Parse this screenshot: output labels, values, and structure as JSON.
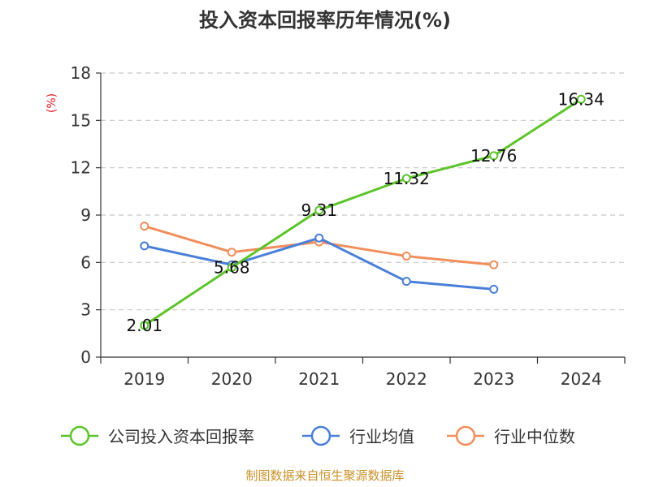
{
  "chart_data": {
    "type": "line",
    "title": "投入资本回报率历年情况(%)",
    "ylabel": "(%)",
    "categories": [
      "2019",
      "2020",
      "2021",
      "2022",
      "2023",
      "2024"
    ],
    "y_ticks": [
      0,
      3,
      6,
      9,
      12,
      15,
      18
    ],
    "ylim": [
      0,
      18
    ],
    "grid": true,
    "legend_position": "bottom",
    "series": [
      {
        "name": "公司投入资本回报率",
        "color": "#5cc42a",
        "values": [
          2.01,
          5.68,
          9.31,
          11.32,
          12.76,
          16.34
        ],
        "labels": [
          "2.01",
          "5.68",
          "9.31",
          "11.32",
          "12.76",
          "16.34"
        ],
        "show_labels": true
      },
      {
        "name": "行业均值",
        "color": "#4a7fd9",
        "values": [
          7.05,
          5.85,
          7.55,
          4.8,
          4.3,
          null
        ],
        "show_labels": false
      },
      {
        "name": "行业中位数",
        "color": "#f28e5c",
        "values": [
          8.3,
          6.65,
          7.3,
          6.4,
          5.85,
          null
        ],
        "show_labels": false
      }
    ],
    "source": "制图数据来自恒生聚源数据库"
  }
}
